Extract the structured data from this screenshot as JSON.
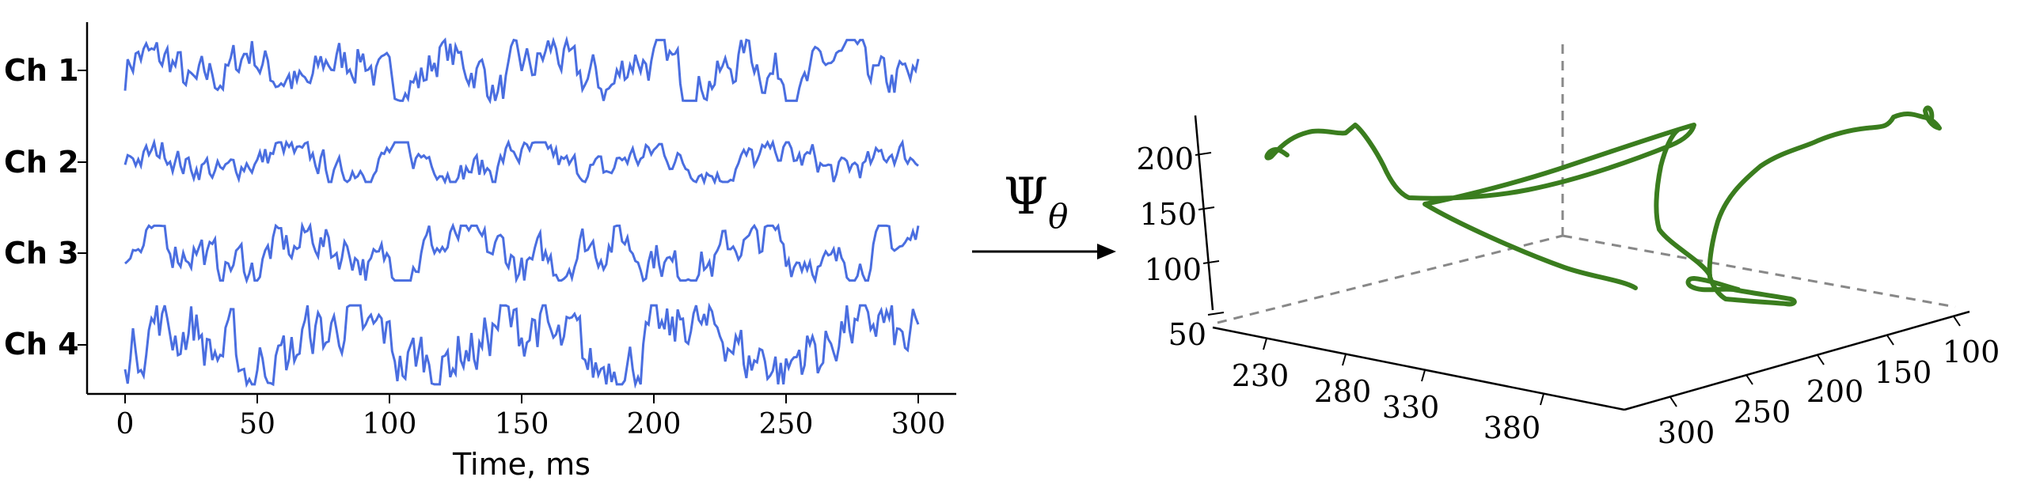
{
  "signal_panel": {
    "channels": [
      "Ch 1",
      "Ch 2",
      "Ch 3",
      "Ch 4"
    ],
    "x_ticks": [
      "0",
      "50",
      "100",
      "150",
      "200",
      "250",
      "300"
    ],
    "x_label": "Time, ms",
    "line_color": "#4a6ee0"
  },
  "mapping": {
    "symbol": "Ψ",
    "subscript": "θ"
  },
  "trajectory_panel": {
    "z_ticks": [
      "50",
      "100",
      "150",
      "200"
    ],
    "x_ticks": [
      "230",
      "280",
      "330",
      "380"
    ],
    "y_ticks": [
      "100",
      "150",
      "200",
      "250",
      "300"
    ],
    "line_color": "#3a7d1e"
  },
  "chart_data": [
    {
      "type": "line",
      "title": "",
      "xlabel": "Time, ms",
      "ylabel": "",
      "xlim": [
        0,
        300
      ],
      "x_ticks": [
        0,
        50,
        100,
        150,
        200,
        250,
        300
      ],
      "series": [
        {
          "name": "Ch 1"
        },
        {
          "name": "Ch 2"
        },
        {
          "name": "Ch 3"
        },
        {
          "name": "Ch 4"
        }
      ]
    },
    {
      "type": "line",
      "title": "",
      "z_ticks": [
        50,
        100,
        150,
        200
      ],
      "x_ticks": [
        230,
        280,
        330,
        380
      ],
      "y_ticks": [
        100,
        150,
        200,
        250,
        300
      ]
    }
  ]
}
